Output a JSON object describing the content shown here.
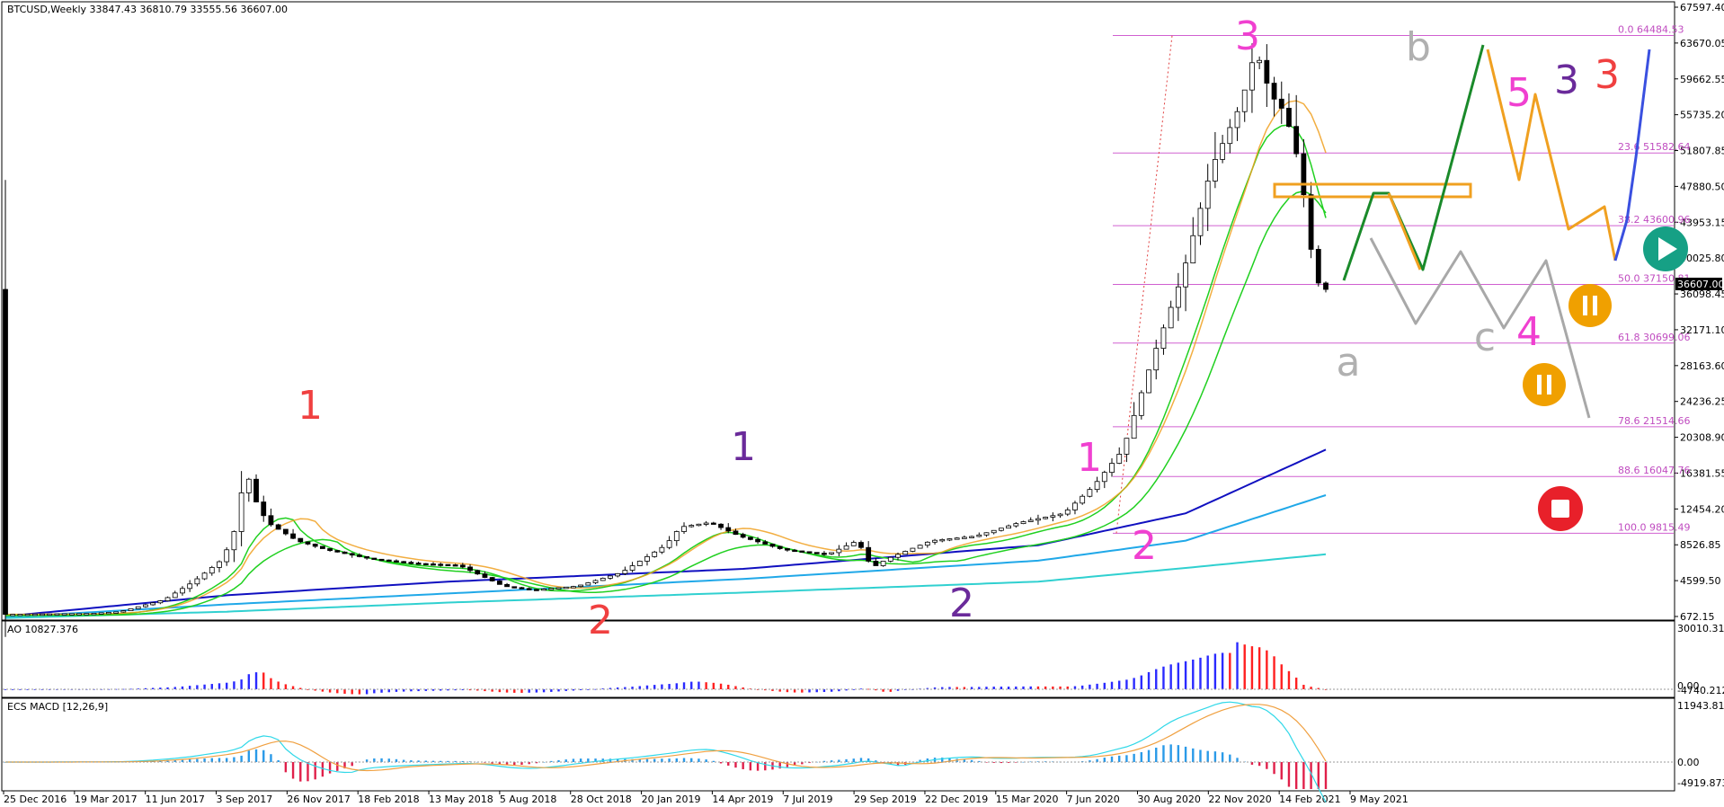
{
  "symbol_header": "BTCUSD,Weekly  33847.43 36810.79 33555.56 36607.00",
  "ao_header": "AO 10827.376",
  "macd_header": "ECS MACD [12,26,9]",
  "current_price_label": "36607.00",
  "colors": {
    "bull_bar": "#2a2aff",
    "bear_bar": "#ff2020",
    "fib": "#d060d0",
    "zone": "#f0a020",
    "ema_green": "#20d020",
    "ema_darkblue": "#1010c0",
    "ema_lightblue": "#20a8e8",
    "ema_cyan": "#30d0d0",
    "ema_orange": "#f0a020",
    "ema_magenta": "#e020e0"
  },
  "chart_data": {
    "type": "candlestick",
    "title": "BTCUSD,Weekly",
    "ohlc_last": {
      "open": 33847.43,
      "high": 36810.79,
      "low": 33555.56,
      "close": 36607.0
    },
    "x_tick_labels": [
      "25 Dec 2016",
      "19 Mar 2017",
      "11 Jun 2017",
      "3 Sep 2017",
      "26 Nov 2017",
      "18 Feb 2018",
      "13 May 2018",
      "5 Aug 2018",
      "28 Oct 2018",
      "20 Jan 2019",
      "14 Apr 2019",
      "7 Jul 2019",
      "29 Sep 2019",
      "22 Dec 2019",
      "15 Mar 2020",
      "7 Jun 2020",
      "30 Aug 2020",
      "22 Nov 2020",
      "14 Feb 2021",
      "9 May 2021"
    ],
    "y_tick_labels": [
      "67597.40",
      "63670.05",
      "59662.55",
      "55735.20",
      "51807.85",
      "47880.50",
      "43953.15",
      "40025.80",
      "36098.45",
      "32171.10",
      "28163.60",
      "24236.25",
      "20308.90",
      "16381.55",
      "12454.20",
      "8526.85",
      "4599.50",
      "672.15"
    ],
    "ylim": [
      672.15,
      67597.4
    ],
    "price_path": [
      [
        0,
        900
      ],
      [
        12,
        1000
      ],
      [
        16,
        1200
      ],
      [
        22,
        2500
      ],
      [
        26,
        4500
      ],
      [
        30,
        7000
      ],
      [
        32,
        11000
      ],
      [
        33,
        17500
      ],
      [
        34,
        14000
      ],
      [
        36,
        11000
      ],
      [
        40,
        9000
      ],
      [
        44,
        8000
      ],
      [
        50,
        7000
      ],
      [
        56,
        6500
      ],
      [
        62,
        6300
      ],
      [
        68,
        4000
      ],
      [
        72,
        3600
      ],
      [
        78,
        4000
      ],
      [
        84,
        5500
      ],
      [
        90,
        8500
      ],
      [
        92,
        10500
      ],
      [
        96,
        11000
      ],
      [
        100,
        9500
      ],
      [
        106,
        8000
      ],
      [
        112,
        7500
      ],
      [
        116,
        9000
      ],
      [
        118,
        6000
      ],
      [
        120,
        7000
      ],
      [
        126,
        9000
      ],
      [
        132,
        9500
      ],
      [
        138,
        11000
      ],
      [
        144,
        12000
      ],
      [
        148,
        15000
      ],
      [
        152,
        19000
      ],
      [
        156,
        29000
      ],
      [
        160,
        38000
      ],
      [
        164,
        50000
      ],
      [
        168,
        57000
      ],
      [
        170,
        63000
      ],
      [
        172,
        58000
      ],
      [
        174,
        56000
      ],
      [
        176,
        50000
      ],
      [
        178,
        38000
      ],
      [
        179,
        36600
      ]
    ],
    "moving_averages": [
      {
        "color": "#1010c0",
        "points": [
          [
            0,
            700
          ],
          [
            30,
            3000
          ],
          [
            60,
            4500
          ],
          [
            100,
            5900
          ],
          [
            140,
            8500
          ],
          [
            160,
            12000
          ],
          [
            179,
            19000
          ]
        ]
      },
      {
        "color": "#20a8e8",
        "points": [
          [
            0,
            600
          ],
          [
            30,
            2000
          ],
          [
            60,
            3200
          ],
          [
            100,
            4800
          ],
          [
            140,
            6800
          ],
          [
            160,
            9000
          ],
          [
            179,
            14000
          ]
        ]
      },
      {
        "color": "#30d0d0",
        "points": [
          [
            0,
            500
          ],
          [
            30,
            1200
          ],
          [
            60,
            2200
          ],
          [
            100,
            3300
          ],
          [
            140,
            4500
          ],
          [
            160,
            6000
          ],
          [
            179,
            7500
          ]
        ]
      }
    ],
    "fib_levels": [
      {
        "ratio": "0.0",
        "price": 64484.53
      },
      {
        "ratio": "23.6",
        "price": 51582.64
      },
      {
        "ratio": "38.2",
        "price": 43600.96
      },
      {
        "ratio": "50.0",
        "price": 37150.81
      },
      {
        "ratio": "61.8",
        "price": 30699.06
      },
      {
        "ratio": "78.6",
        "price": 21514.66
      },
      {
        "ratio": "88.6",
        "price": 16047.76
      },
      {
        "ratio": "100.0",
        "price": 9815.49
      }
    ],
    "wave_labels": [
      {
        "text": "1",
        "color": "#f04040"
      },
      {
        "text": "2",
        "color": "#f04040"
      },
      {
        "text": "1",
        "color": "#6a2a9a"
      },
      {
        "text": "2",
        "color": "#6a2a9a"
      },
      {
        "text": "1",
        "color": "#f040d0"
      },
      {
        "text": "2",
        "color": "#f040d0"
      },
      {
        "text": "3",
        "color": "#f040d0"
      },
      {
        "text": "a",
        "color": "#b0b0b0"
      },
      {
        "text": "b",
        "color": "#b0b0b0"
      },
      {
        "text": "c",
        "color": "#b0b0b0"
      },
      {
        "text": "4",
        "color": "#f040d0"
      },
      {
        "text": "5",
        "color": "#f040d0"
      },
      {
        "text": "3",
        "color": "#6a2a9a"
      },
      {
        "text": "3",
        "color": "#f04040"
      }
    ],
    "ao_y_tick_labels": [
      "30010.318",
      "0.00",
      "-4740.212"
    ],
    "macd_y_tick_labels": [
      "11943.8131",
      "0.00",
      "-4919.8733"
    ]
  }
}
